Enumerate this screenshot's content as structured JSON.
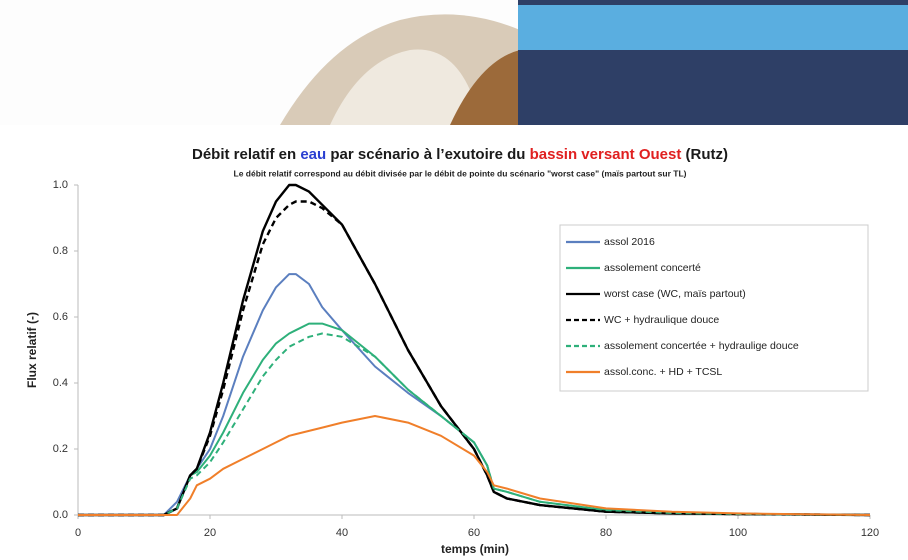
{
  "chart_data": {
    "type": "line",
    "title_parts": [
      {
        "text": "Débit relatif en ",
        "color": "#1a1a1a"
      },
      {
        "text": "eau",
        "color": "#2a3fd1"
      },
      {
        "text": " par scénario à l’exutoire du ",
        "color": "#1a1a1a"
      },
      {
        "text": "bassin versant Ouest",
        "color": "#e02020"
      },
      {
        "text": " (Rutz)",
        "color": "#1a1a1a"
      }
    ],
    "subtitle": "Le débit relatif correspond au débit divisée par le débit de pointe du scénario \"worst case\" (maïs partout sur TL)",
    "x_label": "temps (min)",
    "y_label": "Flux relatif (-)",
    "x": [
      0,
      10,
      13,
      15,
      17,
      18,
      20,
      22,
      25,
      28,
      30,
      32,
      33,
      35,
      37,
      40,
      45,
      50,
      55,
      60,
      62,
      63,
      65,
      70,
      80,
      90,
      100,
      120
    ],
    "series": [
      {
        "name": "assol 2016",
        "color": "#5b7fbf",
        "dashed": false,
        "values": [
          0,
          0,
          0,
          0.04,
          0.12,
          0.14,
          0.2,
          0.3,
          0.48,
          0.62,
          0.69,
          0.73,
          0.73,
          0.7,
          0.63,
          0.56,
          0.45,
          0.37,
          0.3,
          0.22,
          0.15,
          0.07,
          0.05,
          0.03,
          0.01,
          0.005,
          0.003,
          0
        ]
      },
      {
        "name": "assolement concerté",
        "color": "#2eb07a",
        "dashed": false,
        "values": [
          0,
          0,
          0,
          0.02,
          0.12,
          0.13,
          0.18,
          0.25,
          0.37,
          0.47,
          0.52,
          0.55,
          0.56,
          0.58,
          0.58,
          0.56,
          0.48,
          0.38,
          0.3,
          0.22,
          0.15,
          0.08,
          0.07,
          0.04,
          0.015,
          0.006,
          0.003,
          0
        ]
      },
      {
        "name": "worst case (WC, maïs partout)",
        "color": "#000000",
        "dashed": false,
        "values": [
          0,
          0,
          0,
          0.02,
          0.12,
          0.14,
          0.25,
          0.4,
          0.65,
          0.86,
          0.95,
          1.0,
          1.0,
          0.98,
          0.94,
          0.88,
          0.7,
          0.5,
          0.33,
          0.2,
          0.12,
          0.07,
          0.05,
          0.03,
          0.01,
          0.005,
          0.003,
          0
        ]
      },
      {
        "name": "WC + hydraulique douce",
        "color": "#000000",
        "dashed": true,
        "values": [
          0,
          0,
          0,
          0.02,
          0.12,
          0.14,
          0.24,
          0.38,
          0.62,
          0.82,
          0.9,
          0.94,
          0.95,
          0.95,
          0.93,
          0.88,
          0.7,
          0.5,
          0.33,
          0.2,
          0.12,
          0.07,
          0.05,
          0.03,
          0.01,
          0.005,
          0.003,
          0
        ]
      },
      {
        "name": "assolement concertée + hydraulige douce",
        "color": "#2eb07a",
        "dashed": true,
        "values": [
          0,
          0,
          0,
          0.02,
          0.11,
          0.12,
          0.16,
          0.22,
          0.32,
          0.42,
          0.47,
          0.51,
          0.52,
          0.54,
          0.55,
          0.54,
          0.48,
          0.38,
          0.3,
          0.22,
          0.15,
          0.08,
          0.07,
          0.04,
          0.015,
          0.006,
          0.003,
          0
        ]
      },
      {
        "name": "assol.conc. + HD + TCSL",
        "color": "#f07f2a",
        "dashed": false,
        "values": [
          0,
          0,
          0,
          0,
          0.05,
          0.09,
          0.11,
          0.14,
          0.17,
          0.2,
          0.22,
          0.24,
          0.245,
          0.255,
          0.265,
          0.28,
          0.3,
          0.28,
          0.24,
          0.18,
          0.13,
          0.09,
          0.08,
          0.05,
          0.02,
          0.01,
          0.005,
          0
        ]
      }
    ],
    "xlim": [
      0,
      120
    ],
    "xticks": [
      0,
      20,
      40,
      60,
      80,
      100,
      120
    ],
    "ylim": [
      0,
      1
    ],
    "yticks": [
      {
        "value": 0,
        "label": "0.0"
      },
      0.2,
      0.4,
      0.6,
      0.8,
      {
        "value": 1,
        "label": "1.0"
      }
    ],
    "grid": false,
    "legend_position": "upper right"
  }
}
